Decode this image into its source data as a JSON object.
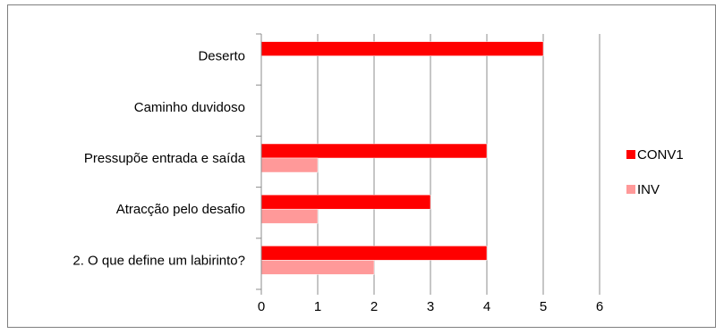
{
  "chart_data": {
    "type": "bar",
    "orientation": "horizontal",
    "categories": [
      "Deserto",
      "Caminho duvidoso",
      "Pressupõe entrada e saída",
      "Atracção pelo desafio",
      "2. O que define um labirinto?"
    ],
    "series": [
      {
        "name": "CONV1",
        "color": "#ff0000",
        "values": [
          5,
          0,
          4,
          3,
          4
        ]
      },
      {
        "name": "INV",
        "color": "#ff9999",
        "values": [
          0,
          0,
          1,
          1,
          2
        ]
      }
    ],
    "xlim": [
      0,
      6
    ],
    "xticks": [
      "0",
      "1",
      "2",
      "3",
      "4",
      "5",
      "6"
    ],
    "grid": "vertical",
    "legend_position": "right",
    "title": "",
    "xlabel": "",
    "ylabel": ""
  }
}
